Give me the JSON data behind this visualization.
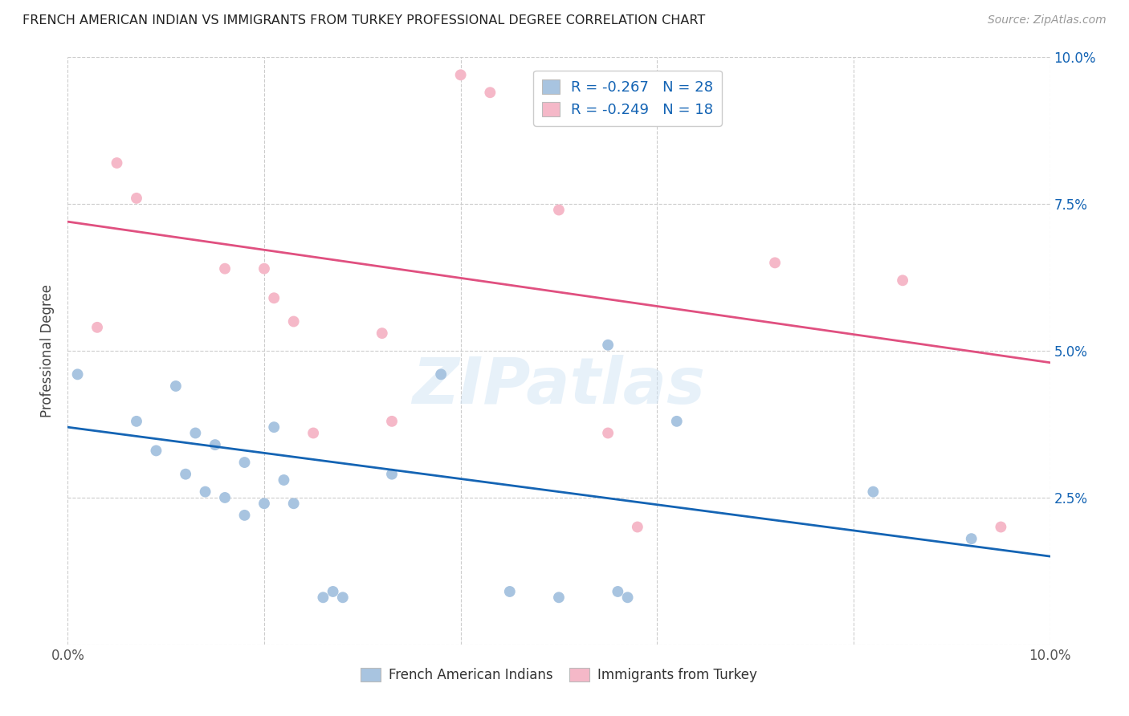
{
  "title": "FRENCH AMERICAN INDIAN VS IMMIGRANTS FROM TURKEY PROFESSIONAL DEGREE CORRELATION CHART",
  "source": "Source: ZipAtlas.com",
  "ylabel": "Professional Degree",
  "xlabel": "",
  "watermark": "ZIPatlas",
  "xlim": [
    0.0,
    0.1
  ],
  "ylim": [
    0.0,
    0.1
  ],
  "xticks": [
    0.0,
    0.02,
    0.04,
    0.06,
    0.08,
    0.1
  ],
  "yticks": [
    0.0,
    0.025,
    0.05,
    0.075,
    0.1
  ],
  "xtick_labels": [
    "0.0%",
    "",
    "",
    "",
    "",
    "10.0%"
  ],
  "ytick_labels_right": [
    "",
    "2.5%",
    "5.0%",
    "7.5%",
    "10.0%"
  ],
  "blue_scatter_x": [
    0.001,
    0.007,
    0.009,
    0.011,
    0.012,
    0.013,
    0.014,
    0.015,
    0.016,
    0.018,
    0.018,
    0.02,
    0.021,
    0.022,
    0.023,
    0.026,
    0.027,
    0.028,
    0.033,
    0.038,
    0.045,
    0.05,
    0.055,
    0.056,
    0.057,
    0.062,
    0.082,
    0.092
  ],
  "blue_scatter_y": [
    0.046,
    0.038,
    0.033,
    0.044,
    0.029,
    0.036,
    0.026,
    0.034,
    0.025,
    0.031,
    0.022,
    0.024,
    0.037,
    0.028,
    0.024,
    0.008,
    0.009,
    0.008,
    0.029,
    0.046,
    0.009,
    0.008,
    0.051,
    0.009,
    0.008,
    0.038,
    0.026,
    0.018
  ],
  "pink_scatter_x": [
    0.003,
    0.005,
    0.007,
    0.016,
    0.02,
    0.021,
    0.023,
    0.025,
    0.032,
    0.033,
    0.04,
    0.043,
    0.05,
    0.055,
    0.058,
    0.072,
    0.085,
    0.095
  ],
  "pink_scatter_y": [
    0.054,
    0.082,
    0.076,
    0.064,
    0.064,
    0.059,
    0.055,
    0.036,
    0.053,
    0.038,
    0.097,
    0.094,
    0.074,
    0.036,
    0.02,
    0.065,
    0.062,
    0.02
  ],
  "blue_line_x": [
    0.0,
    0.1
  ],
  "blue_line_y": [
    0.037,
    0.015
  ],
  "pink_line_x": [
    0.0,
    0.1
  ],
  "pink_line_y": [
    0.072,
    0.048
  ],
  "blue_color": "#a8c4e0",
  "blue_line_color": "#1464b4",
  "pink_color": "#f5b8c8",
  "pink_line_color": "#e05080",
  "legend_R_blue": "R = -0.267",
  "legend_N_blue": "N = 28",
  "legend_R_pink": "R = -0.249",
  "legend_N_pink": "N = 18",
  "legend_label_blue": "French American Indians",
  "legend_label_pink": "Immigrants from Turkey",
  "grid_color": "#cccccc",
  "background_color": "#ffffff",
  "scatter_size": 100
}
